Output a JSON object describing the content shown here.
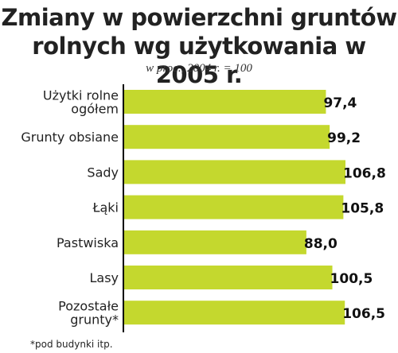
{
  "chart_data": {
    "type": "bar",
    "orientation": "horizontal",
    "title": "Zmiany w powierzchni gruntów rolnych wg użytkowania w 2005 r.",
    "title_lines": [
      "Zmiany w powierzchni gruntów",
      "rolnych wg użytkowania w 2005 r."
    ],
    "subtitle": "w proc., 2004 r. = 100",
    "categories": [
      [
        "Użytki rolne",
        "ogółem"
      ],
      [
        "Grunty obsiane"
      ],
      [
        "Sady"
      ],
      [
        "Łąki"
      ],
      [
        "Pastwiska"
      ],
      [
        "Lasy"
      ],
      [
        "Pozostałe",
        "grunty*"
      ]
    ],
    "values": [
      97.4,
      99.2,
      106.8,
      105.8,
      88.0,
      100.5,
      106.5
    ],
    "value_labels": [
      "97,4",
      "99,2",
      "106,8",
      "105,8",
      "88,0",
      "100,5",
      "106,5"
    ],
    "xlim": [
      0,
      106.8
    ],
    "bar_color": "#c4d82e",
    "axis_color": "#000000",
    "grid": false,
    "footnote": "*pod budynki itp."
  }
}
